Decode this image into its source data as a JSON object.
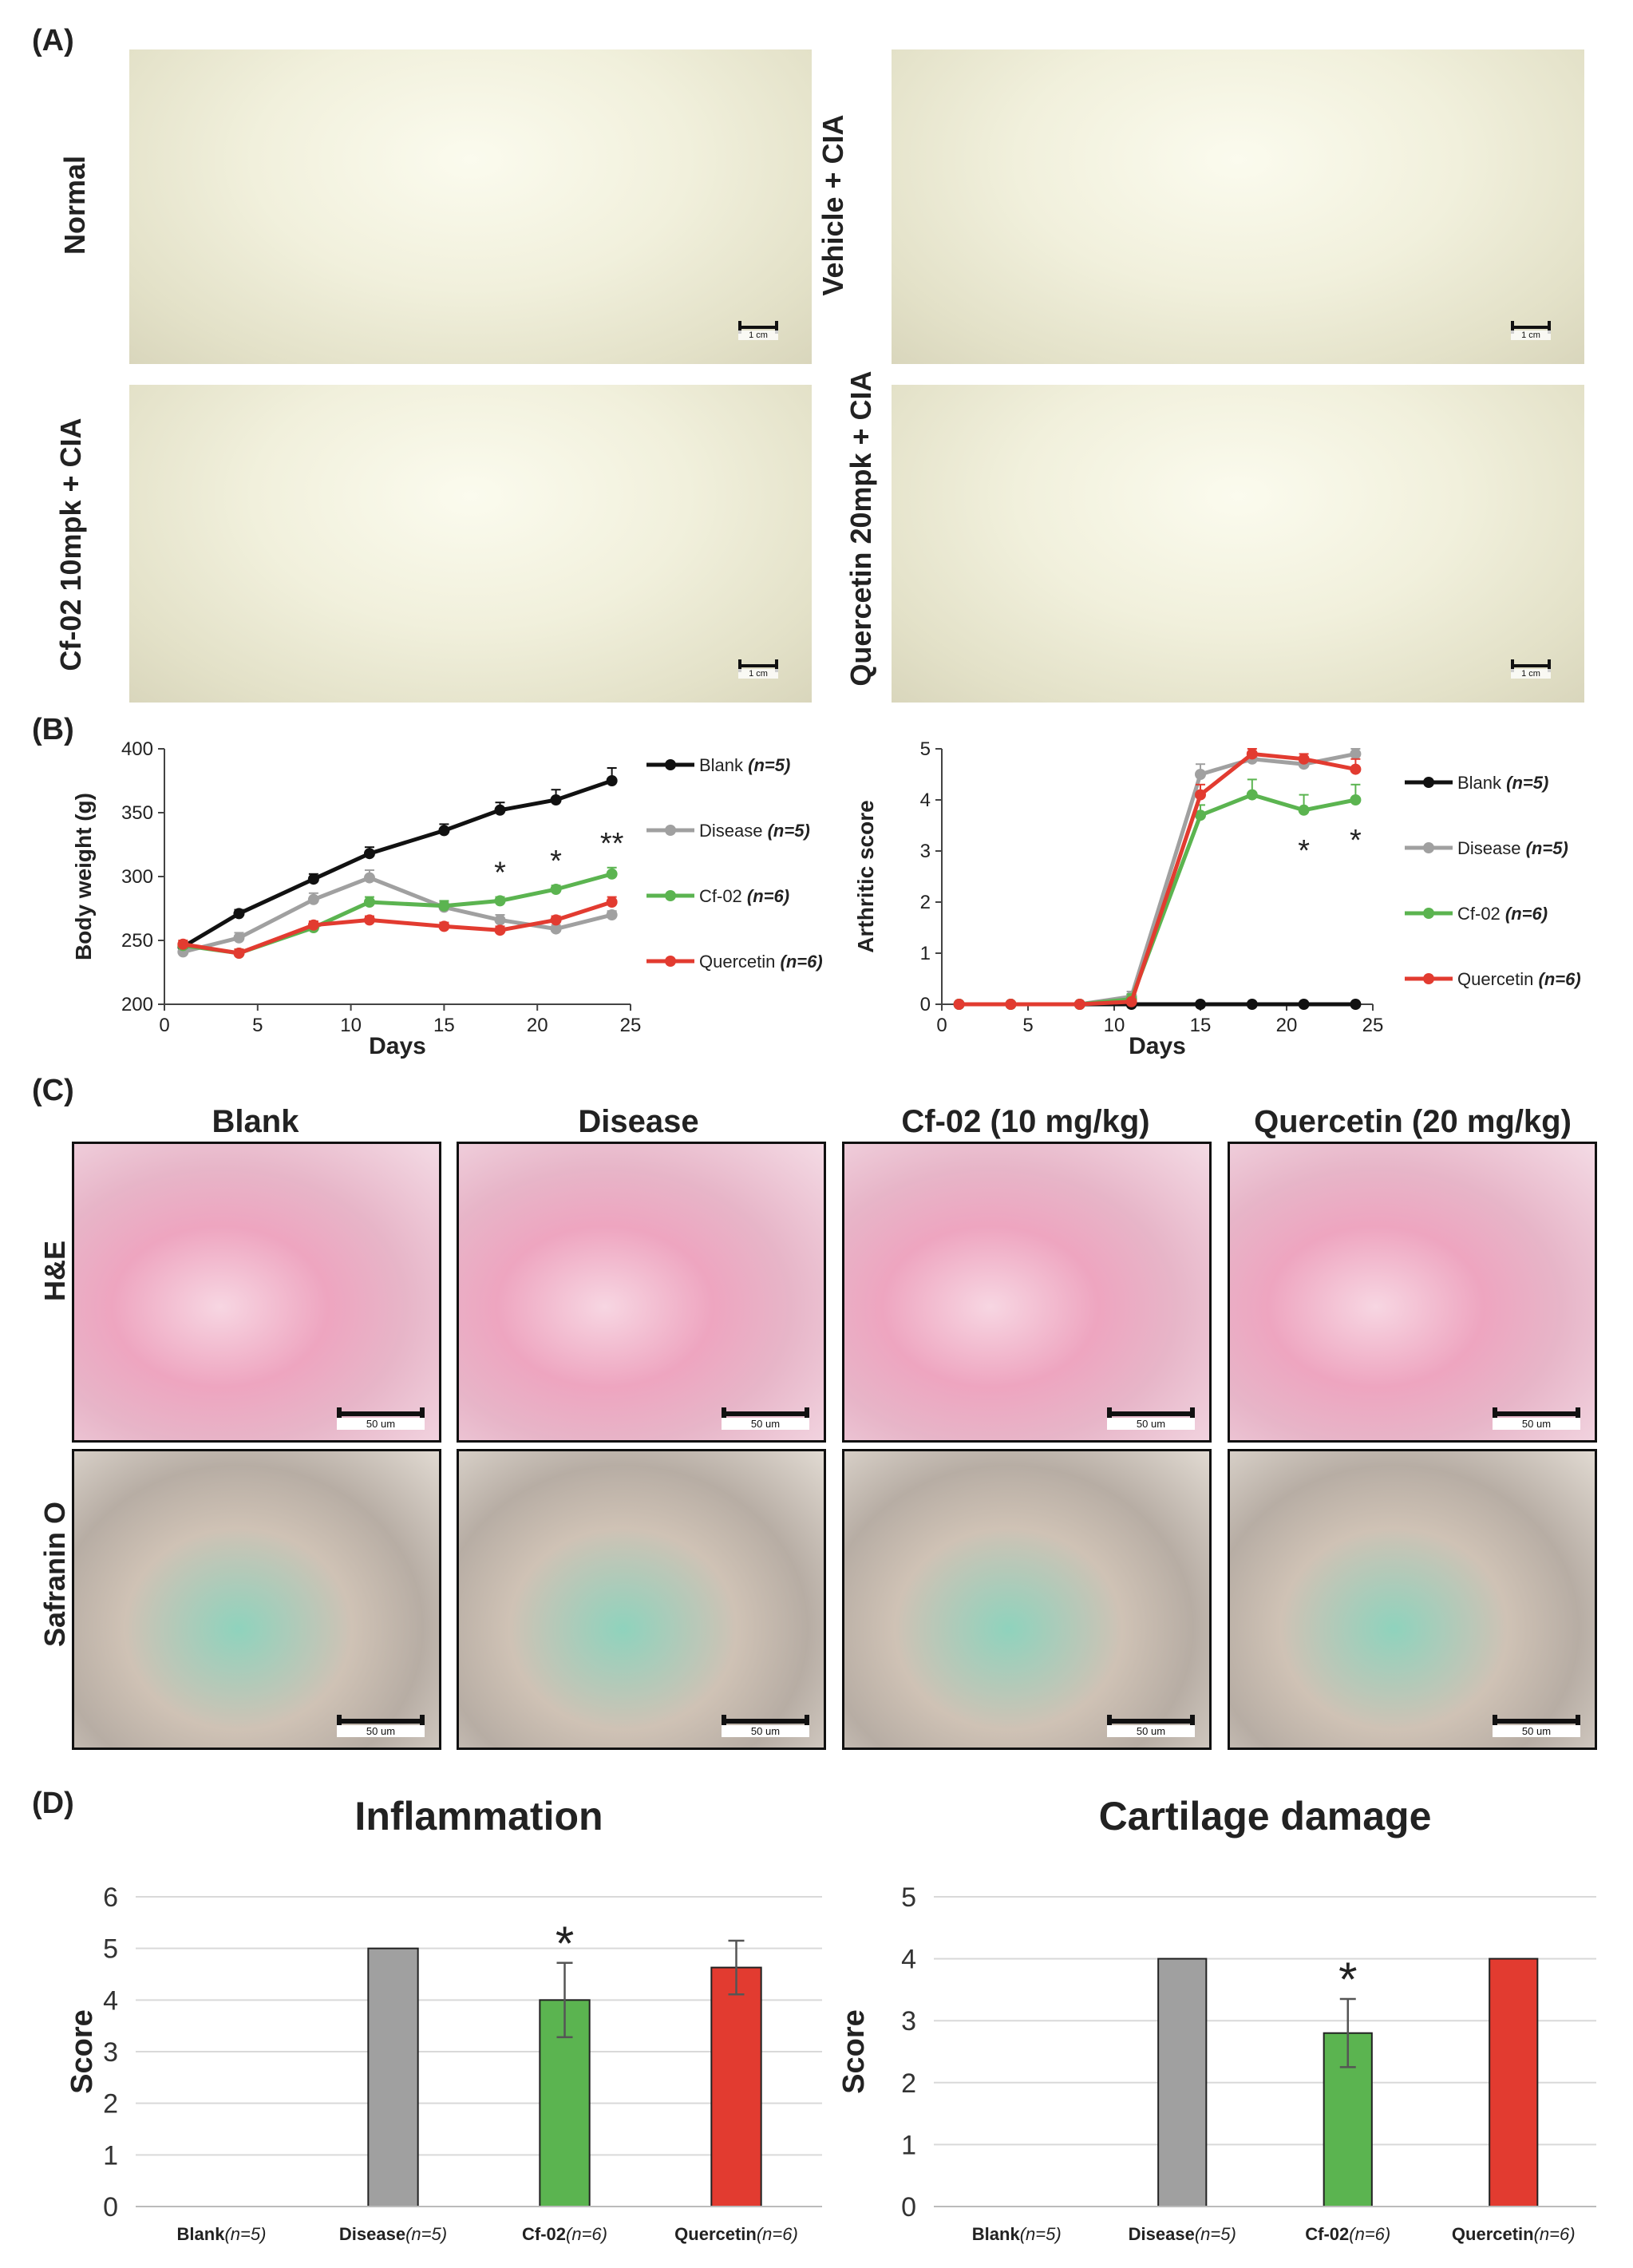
{
  "panel_a": {
    "label": "(A)",
    "photos": [
      {
        "label": "Normal"
      },
      {
        "label": "Vehicle + CIA"
      },
      {
        "label": "Cf-02 10mpk + CIA"
      },
      {
        "label": "Quercetin 20mpk + CIA"
      }
    ],
    "scale_label": "1 cm"
  },
  "panel_b": {
    "label": "(B)"
  },
  "panel_c": {
    "label": "(C)",
    "columns": [
      "Blank",
      "Disease",
      "Cf-02 (10 mg/kg)",
      "Quercetin (20 mg/kg)"
    ],
    "rows": [
      "H&E",
      "Safranin O"
    ],
    "scale_label": "50 um"
  },
  "panel_d": {
    "label": "(D)"
  },
  "colors": {
    "blank": "#111111",
    "disease": "#a0a0a0",
    "cf02": "#5bb450",
    "quercetin": "#e23b30"
  },
  "chart_data": [
    {
      "type": "line",
      "id": "body-weight",
      "xlabel": "Days",
      "ylabel": "Body weight (g)",
      "xlim": [
        0,
        25
      ],
      "ylim": [
        200,
        400
      ],
      "xticks": [
        0,
        5,
        10,
        15,
        20,
        25
      ],
      "yticks": [
        200,
        250,
        300,
        350,
        400
      ],
      "x": [
        1,
        4,
        8,
        11,
        15,
        18,
        21,
        24
      ],
      "series": [
        {
          "name": "Blank",
          "n": "(n=5)",
          "values": [
            245,
            271,
            298,
            318,
            336,
            352,
            360,
            375
          ],
          "err": [
            3,
            3,
            4,
            5,
            5,
            6,
            8,
            10
          ]
        },
        {
          "name": "Disease",
          "n": "(n=5)",
          "values": [
            241,
            252,
            282,
            299,
            276,
            266,
            259,
            270
          ],
          "err": [
            3,
            4,
            5,
            6,
            4,
            4,
            3,
            3
          ]
        },
        {
          "name": "Cf-02",
          "n": "(n=6)",
          "values": [
            246,
            240,
            260,
            280,
            277,
            281,
            290,
            302
          ],
          "err": [
            3,
            3,
            3,
            4,
            4,
            3,
            3,
            5
          ]
        },
        {
          "name": "Quercetin",
          "n": "(n=6)",
          "values": [
            247,
            240,
            262,
            266,
            261,
            258,
            266,
            280
          ],
          "err": [
            3,
            3,
            3,
            3,
            3,
            3,
            3,
            4
          ]
        }
      ],
      "annotations": [
        {
          "x": 18,
          "text": "*"
        },
        {
          "x": 21,
          "text": "*"
        },
        {
          "x": 24,
          "text": "**"
        }
      ]
    },
    {
      "type": "line",
      "id": "arthritic-score",
      "xlabel": "Days",
      "ylabel": "Arthritic score",
      "xlim": [
        0,
        25
      ],
      "ylim": [
        0,
        5
      ],
      "xticks": [
        0,
        5,
        10,
        15,
        20,
        25
      ],
      "yticks": [
        0,
        1,
        2,
        3,
        4,
        5
      ],
      "x": [
        1,
        4,
        8,
        11,
        15,
        18,
        21,
        24
      ],
      "series": [
        {
          "name": "Blank",
          "n": "(n=5)",
          "values": [
            0,
            0,
            0,
            0,
            0,
            0,
            0,
            0
          ],
          "err": [
            0,
            0,
            0,
            0,
            0,
            0,
            0,
            0
          ]
        },
        {
          "name": "Disease",
          "n": "(n=5)",
          "values": [
            0,
            0,
            0,
            0.15,
            4.5,
            4.8,
            4.7,
            4.9
          ],
          "err": [
            0,
            0,
            0,
            0.1,
            0.2,
            0.1,
            0.1,
            0.1
          ]
        },
        {
          "name": "Cf-02",
          "n": "(n=6)",
          "values": [
            0,
            0,
            0,
            0.1,
            3.7,
            4.1,
            3.8,
            4.0
          ],
          "err": [
            0,
            0,
            0,
            0.1,
            0.2,
            0.3,
            0.3,
            0.3
          ]
        },
        {
          "name": "Quercetin",
          "n": "(n=6)",
          "values": [
            0,
            0,
            0,
            0.05,
            4.1,
            4.9,
            4.8,
            4.6
          ],
          "err": [
            0,
            0,
            0,
            0.05,
            0.2,
            0.1,
            0.1,
            0.2
          ]
        }
      ],
      "annotations": [
        {
          "x": 21,
          "text": "*"
        },
        {
          "x": 24,
          "text": "*"
        }
      ]
    },
    {
      "type": "bar",
      "id": "inflammation",
      "title": "Inflammation",
      "ylabel": "Score",
      "ylim": [
        0,
        6
      ],
      "yticks": [
        0,
        1,
        2,
        3,
        4,
        5,
        6
      ],
      "categories": [
        {
          "name": "Blank",
          "n": "(n=5)"
        },
        {
          "name": "Disease",
          "n": "(n=5)"
        },
        {
          "name": "Cf-02",
          "n": "(n=6)"
        },
        {
          "name": "Quercetin",
          "n": "(n=6)"
        }
      ],
      "values": [
        0,
        5,
        4.0,
        4.63
      ],
      "err": [
        0,
        0,
        0.72,
        0.52
      ],
      "annotations": [
        {
          "index": 2,
          "text": "*"
        }
      ]
    },
    {
      "type": "bar",
      "id": "cartilage-damage",
      "title": "Cartilage damage",
      "ylabel": "Score",
      "ylim": [
        0,
        5
      ],
      "yticks": [
        0,
        1,
        2,
        3,
        4,
        5
      ],
      "categories": [
        {
          "name": "Blank",
          "n": "(n=5)"
        },
        {
          "name": "Disease",
          "n": "(n=5)"
        },
        {
          "name": "Cf-02",
          "n": "(n=6)"
        },
        {
          "name": "Quercetin",
          "n": "(n=6)"
        }
      ],
      "values": [
        0,
        4,
        2.8,
        4
      ],
      "err": [
        0,
        0,
        0.55,
        0
      ],
      "annotations": [
        {
          "index": 2,
          "text": "*"
        }
      ]
    }
  ]
}
